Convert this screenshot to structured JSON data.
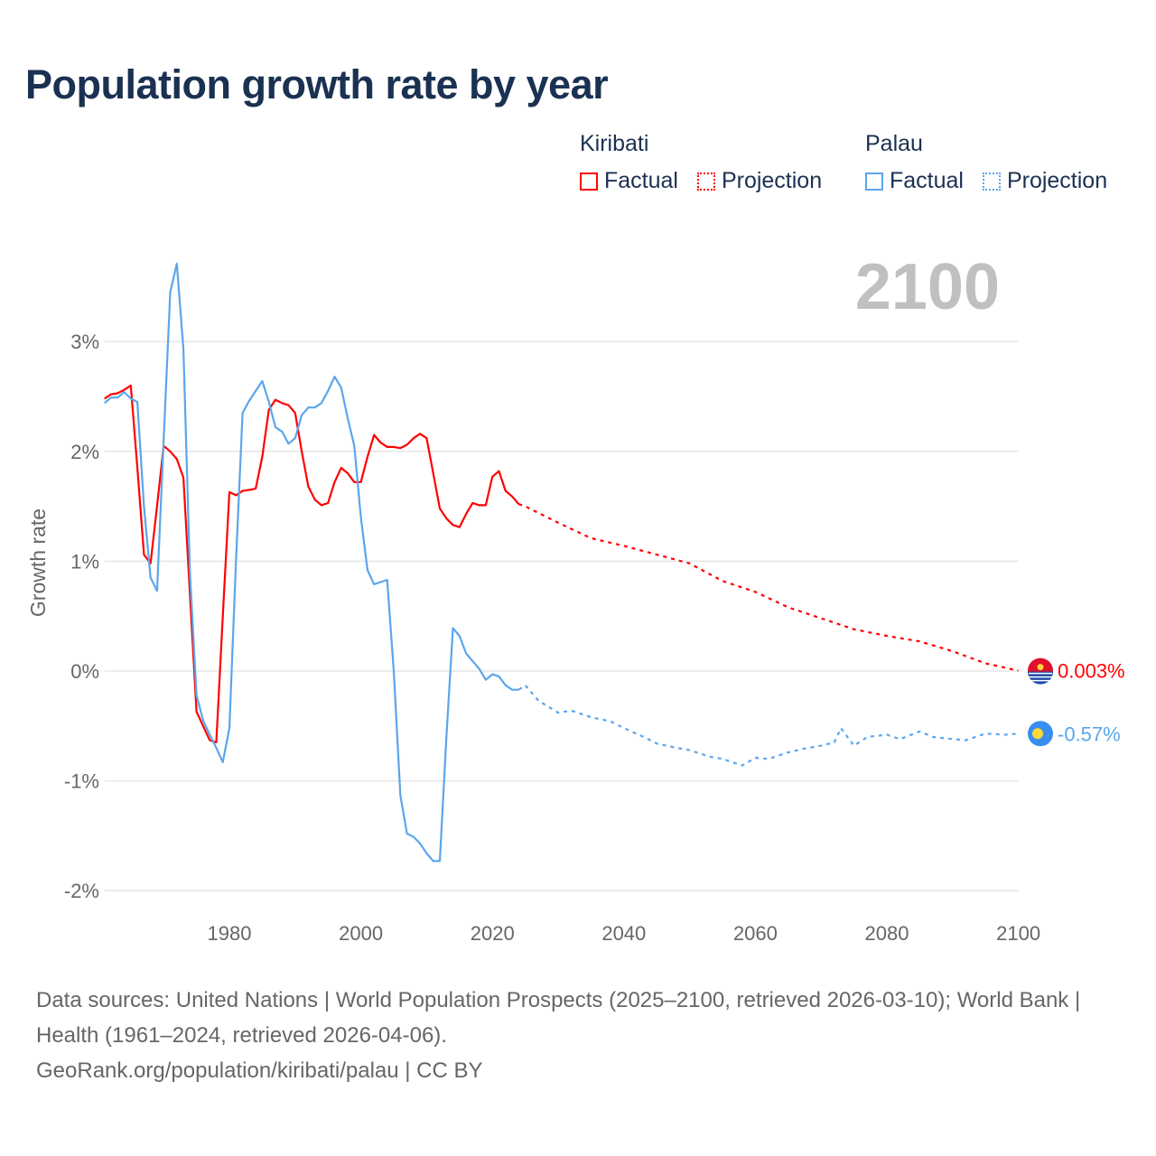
{
  "chart_data": {
    "type": "line",
    "title": "Population growth rate by year",
    "ylabel": "Growth rate",
    "xlabel": "",
    "xlim": [
      1961,
      2100
    ],
    "ylim": [
      -2,
      3
    ],
    "year_watermark": "2100",
    "x_ticks": [
      "1980",
      "2000",
      "2020",
      "2040",
      "2060",
      "2080",
      "2100"
    ],
    "y_ticks": [
      {
        "value": 3,
        "label": "3%"
      },
      {
        "value": 2,
        "label": "2%"
      },
      {
        "value": 1,
        "label": "1%"
      },
      {
        "value": 0,
        "label": "0%"
      },
      {
        "value": -1,
        "label": "-1%"
      },
      {
        "value": -2,
        "label": "-2%"
      }
    ],
    "grid": true,
    "legend_placement": "top-right",
    "series": [
      {
        "name": "Kiribati",
        "color": "#ff0000",
        "end_label": "0.003%",
        "factual_label": "Factual",
        "projection_label": "Projection",
        "factual": {
          "start_year": 1961,
          "values": [
            2.48,
            2.52,
            2.53,
            2.56,
            2.6,
            1.85,
            1.06,
            0.98,
            1.5,
            2.05,
            2.0,
            1.93,
            1.76,
            0.7,
            -0.37,
            -0.5,
            -0.63,
            -0.65,
            0.5,
            1.63,
            1.6,
            1.64,
            1.65,
            1.66,
            1.95,
            2.38,
            2.47,
            2.44,
            2.42,
            2.35,
            2.0,
            1.68,
            1.56,
            1.51,
            1.53,
            1.72,
            1.85,
            1.8,
            1.72,
            1.72,
            1.95,
            2.15,
            2.08,
            2.04,
            2.04,
            2.03,
            2.06,
            2.12,
            2.16,
            2.12,
            1.8,
            1.48,
            1.39,
            1.33,
            1.31,
            1.43,
            1.53,
            1.51,
            1.51,
            1.77,
            1.82,
            1.64,
            1.59,
            1.52
          ]
        },
        "projection": {
          "x": [
            2024,
            2025,
            2030,
            2035,
            2040,
            2045,
            2050,
            2055,
            2060,
            2065,
            2070,
            2075,
            2080,
            2085,
            2090,
            2095,
            2100
          ],
          "y": [
            1.52,
            1.5,
            1.35,
            1.21,
            1.14,
            1.06,
            0.98,
            0.82,
            0.72,
            0.58,
            0.48,
            0.38,
            0.32,
            0.27,
            0.18,
            0.07,
            0.003
          ]
        }
      },
      {
        "name": "Palau",
        "color": "#5ba6ec",
        "end_label": "-0.57%",
        "factual_label": "Factual",
        "projection_label": "Projection",
        "factual": {
          "start_year": 1961,
          "values": [
            2.44,
            2.49,
            2.49,
            2.54,
            2.48,
            2.45,
            1.5,
            0.85,
            0.73,
            2.1,
            3.45,
            3.71,
            2.93,
            0.9,
            -0.22,
            -0.45,
            -0.58,
            -0.7,
            -0.83,
            -0.52,
            1.0,
            2.35,
            2.46,
            2.55,
            2.64,
            2.45,
            2.22,
            2.18,
            2.07,
            2.12,
            2.33,
            2.4,
            2.4,
            2.44,
            2.55,
            2.68,
            2.58,
            2.3,
            2.05,
            1.4,
            0.92,
            0.79,
            0.81,
            0.83,
            0.0,
            -1.13,
            -1.48,
            -1.51,
            -1.57,
            -1.66,
            -1.73,
            -1.73,
            -0.6,
            0.39,
            0.32,
            0.16,
            0.09,
            0.02,
            -0.08,
            -0.03,
            -0.05,
            -0.13,
            -0.17,
            -0.17
          ]
        },
        "projection": {
          "x": [
            2024,
            2025,
            2027,
            2030,
            2032,
            2035,
            2038,
            2040,
            2043,
            2045,
            2048,
            2050,
            2053,
            2055,
            2058,
            2060,
            2062,
            2065,
            2068,
            2070,
            2072,
            2073,
            2075,
            2077,
            2080,
            2082,
            2085,
            2087,
            2090,
            2092,
            2095,
            2098,
            2100
          ],
          "y": [
            -0.17,
            -0.13,
            -0.27,
            -0.38,
            -0.36,
            -0.42,
            -0.46,
            -0.52,
            -0.6,
            -0.66,
            -0.7,
            -0.72,
            -0.78,
            -0.8,
            -0.86,
            -0.79,
            -0.8,
            -0.74,
            -0.7,
            -0.68,
            -0.65,
            -0.52,
            -0.68,
            -0.6,
            -0.58,
            -0.62,
            -0.55,
            -0.6,
            -0.62,
            -0.63,
            -0.57,
            -0.58,
            -0.57
          ]
        }
      }
    ]
  },
  "footer": {
    "sources": "Data sources: United Nations | World Population Prospects (2025–2100, retrieved 2026-03-10); World Bank | Health (1961–2024, retrieved 2026-04-06).",
    "credit": "GeoRank.org/population/kiribati/palau | CC BY"
  }
}
